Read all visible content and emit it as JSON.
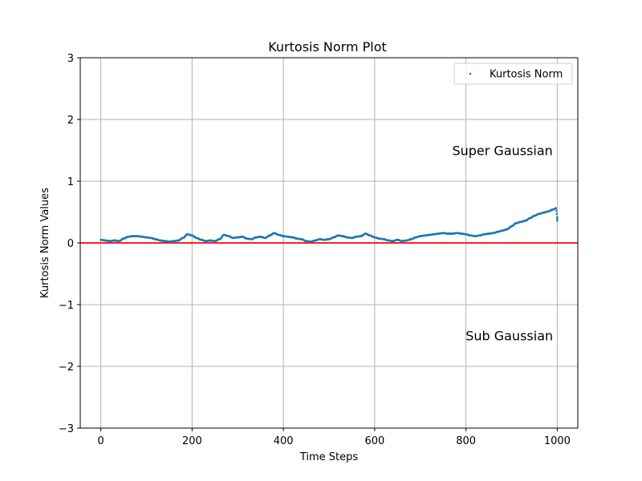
{
  "chart_data": {
    "type": "scatter",
    "title": "Kurtosis Norm Plot",
    "xlabel": "Time Steps",
    "ylabel": "Kurtosis Norm Values",
    "xlim": [
      -45,
      1045
    ],
    "ylim": [
      -3,
      3
    ],
    "xticks": [
      0,
      200,
      400,
      600,
      800,
      1000
    ],
    "xtick_labels": [
      "0",
      "200",
      "400",
      "600",
      "800",
      "1000"
    ],
    "yticks": [
      -3,
      -2,
      -1,
      0,
      1,
      2,
      3
    ],
    "ytick_labels": [
      "−3",
      "−2",
      "−1",
      "0",
      "1",
      "2",
      "3"
    ],
    "grid": true,
    "legend_position": "top-right",
    "series": [
      {
        "name": "Kurtosis Norm",
        "color": "#1f77b4",
        "marker_size": 1,
        "keypoints_x": [
          0,
          10,
          20,
          30,
          40,
          50,
          60,
          70,
          80,
          90,
          100,
          110,
          120,
          130,
          140,
          150,
          160,
          170,
          180,
          190,
          200,
          210,
          220,
          230,
          240,
          250,
          260,
          270,
          280,
          290,
          300,
          310,
          320,
          330,
          340,
          350,
          360,
          370,
          380,
          390,
          400,
          410,
          420,
          430,
          440,
          450,
          460,
          470,
          480,
          490,
          500,
          510,
          520,
          530,
          540,
          550,
          560,
          570,
          580,
          590,
          600,
          610,
          620,
          630,
          640,
          650,
          660,
          670,
          680,
          690,
          700,
          710,
          720,
          730,
          740,
          750,
          760,
          770,
          780,
          790,
          800,
          810,
          820,
          830,
          840,
          850,
          860,
          870,
          880,
          890,
          900,
          910,
          920,
          930,
          940,
          950,
          960,
          970,
          980,
          990,
          1000
        ],
        "keypoints_y": [
          0.05,
          0.04,
          0.03,
          0.04,
          0.03,
          0.07,
          0.1,
          0.11,
          0.11,
          0.1,
          0.09,
          0.08,
          0.06,
          0.04,
          0.03,
          0.02,
          0.03,
          0.04,
          0.08,
          0.14,
          0.12,
          0.08,
          0.05,
          0.03,
          0.04,
          0.03,
          0.06,
          0.13,
          0.11,
          0.08,
          0.09,
          0.1,
          0.07,
          0.06,
          0.09,
          0.1,
          0.08,
          0.12,
          0.16,
          0.13,
          0.11,
          0.1,
          0.09,
          0.07,
          0.06,
          0.03,
          0.02,
          0.04,
          0.06,
          0.05,
          0.06,
          0.09,
          0.12,
          0.11,
          0.09,
          0.08,
          0.1,
          0.11,
          0.15,
          0.12,
          0.09,
          0.07,
          0.06,
          0.04,
          0.03,
          0.05,
          0.03,
          0.04,
          0.06,
          0.09,
          0.11,
          0.12,
          0.13,
          0.14,
          0.15,
          0.16,
          0.15,
          0.15,
          0.16,
          0.15,
          0.14,
          0.12,
          0.11,
          0.12,
          0.14,
          0.15,
          0.16,
          0.18,
          0.2,
          0.22,
          0.27,
          0.32,
          0.34,
          0.36,
          0.4,
          0.44,
          0.47,
          0.49,
          0.51,
          0.54,
          0.57
        ],
        "tail_x": [
          998,
          999,
          1000,
          1000,
          1000
        ],
        "tail_y": [
          0.52,
          0.47,
          0.42,
          0.39,
          0.36
        ]
      }
    ],
    "reference_lines": [
      {
        "axis": "y",
        "value": 0,
        "color": "#ff0000"
      }
    ],
    "annotations": [
      {
        "text": "Super Gaussian",
        "x": 880,
        "y": 1.5
      },
      {
        "text": "Sub Gaussian",
        "x": 895,
        "y": -1.5
      }
    ]
  }
}
